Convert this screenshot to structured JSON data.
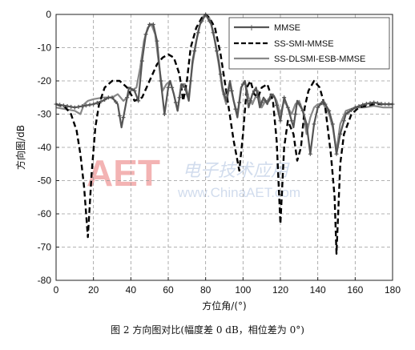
{
  "chart_data": {
    "type": "line",
    "title": "",
    "xlabel": "方位角/(°)",
    "ylabel": "方向图/dB",
    "xlim": [
      0,
      180
    ],
    "ylim": [
      -80,
      0
    ],
    "xticks": [
      0,
      20,
      40,
      60,
      80,
      100,
      120,
      140,
      160,
      180
    ],
    "yticks": [
      0,
      -10,
      -20,
      -30,
      -40,
      -50,
      -60,
      -70,
      -80
    ],
    "grid": true,
    "legend_position": "top-right",
    "series": [
      {
        "name": "MMSE",
        "color": "#555555",
        "style": "solid-plus-markers",
        "points": [
          [
            0,
            -27
          ],
          [
            5,
            -27.5
          ],
          [
            10,
            -28
          ],
          [
            15,
            -27.5
          ],
          [
            20,
            -27
          ],
          [
            25,
            -26
          ],
          [
            28,
            -25
          ],
          [
            30,
            -25
          ],
          [
            33,
            -27
          ],
          [
            35,
            -34
          ],
          [
            37,
            -28
          ],
          [
            39,
            -22
          ],
          [
            42,
            -23
          ],
          [
            44,
            -26
          ],
          [
            46,
            -14
          ],
          [
            48,
            -6
          ],
          [
            50,
            -3
          ],
          [
            52,
            -3
          ],
          [
            54,
            -8
          ],
          [
            56,
            -20
          ],
          [
            58,
            -30
          ],
          [
            60,
            -22
          ],
          [
            61,
            -20
          ],
          [
            63,
            -24
          ],
          [
            65,
            -29
          ],
          [
            67,
            -21
          ],
          [
            69,
            -22
          ],
          [
            71,
            -26
          ],
          [
            73,
            -14
          ],
          [
            75,
            -8
          ],
          [
            77,
            -3
          ],
          [
            80,
            0
          ],
          [
            83,
            -3
          ],
          [
            85,
            -8
          ],
          [
            87,
            -14
          ],
          [
            89,
            -22
          ],
          [
            91,
            -26
          ],
          [
            93,
            -20
          ],
          [
            95,
            -26
          ],
          [
            97,
            -31
          ],
          [
            99,
            -22
          ],
          [
            101,
            -20
          ],
          [
            103,
            -28
          ],
          [
            105,
            -24
          ],
          [
            107,
            -22
          ],
          [
            109,
            -28
          ],
          [
            111,
            -25
          ],
          [
            113,
            -27
          ],
          [
            115,
            -24
          ],
          [
            117,
            -25
          ],
          [
            120,
            -32
          ],
          [
            122,
            -25
          ],
          [
            124,
            -28
          ],
          [
            127,
            -34
          ],
          [
            129,
            -26
          ],
          [
            132,
            -29
          ],
          [
            134,
            -33
          ],
          [
            136,
            -42
          ],
          [
            138,
            -33
          ],
          [
            140,
            -28
          ],
          [
            143,
            -26
          ],
          [
            146,
            -29
          ],
          [
            148,
            -33
          ],
          [
            150,
            -42
          ],
          [
            152,
            -36
          ],
          [
            155,
            -30
          ],
          [
            160,
            -28
          ],
          [
            165,
            -27
          ],
          [
            170,
            -26.5
          ],
          [
            175,
            -27
          ],
          [
            180,
            -27
          ]
        ]
      },
      {
        "name": "SS-SMI-MMSE",
        "color": "#000000",
        "style": "dashed",
        "points": [
          [
            0,
            -27
          ],
          [
            5,
            -28
          ],
          [
            8,
            -30
          ],
          [
            11,
            -35
          ],
          [
            13,
            -42
          ],
          [
            15,
            -52
          ],
          [
            17,
            -67
          ],
          [
            19,
            -48
          ],
          [
            21,
            -34
          ],
          [
            23,
            -27
          ],
          [
            26,
            -22
          ],
          [
            30,
            -20
          ],
          [
            34,
            -20
          ],
          [
            38,
            -22
          ],
          [
            42,
            -26
          ],
          [
            46,
            -25
          ],
          [
            50,
            -20
          ],
          [
            54,
            -15
          ],
          [
            57,
            -13
          ],
          [
            60,
            -12
          ],
          [
            63,
            -13
          ],
          [
            66,
            -18
          ],
          [
            68,
            -26
          ],
          [
            70,
            -20
          ],
          [
            72,
            -10
          ],
          [
            75,
            -4
          ],
          [
            78,
            -1
          ],
          [
            80,
            0
          ],
          [
            82,
            -1
          ],
          [
            85,
            -4
          ],
          [
            88,
            -12
          ],
          [
            91,
            -23
          ],
          [
            95,
            -38
          ],
          [
            98,
            -47
          ],
          [
            100,
            -36
          ],
          [
            102,
            -22
          ],
          [
            104,
            -20
          ],
          [
            106,
            -24
          ],
          [
            108,
            -25
          ],
          [
            110,
            -22
          ],
          [
            113,
            -21
          ],
          [
            116,
            -26
          ],
          [
            118,
            -38
          ],
          [
            120,
            -63
          ],
          [
            122,
            -40
          ],
          [
            124,
            -32
          ],
          [
            127,
            -36
          ],
          [
            129,
            -44
          ],
          [
            131,
            -40
          ],
          [
            133,
            -28
          ],
          [
            135,
            -23
          ],
          [
            138,
            -20
          ],
          [
            141,
            -22
          ],
          [
            144,
            -28
          ],
          [
            147,
            -42
          ],
          [
            149,
            -55
          ],
          [
            150,
            -72
          ],
          [
            152,
            -45
          ],
          [
            154,
            -36
          ],
          [
            158,
            -30
          ],
          [
            162,
            -28
          ],
          [
            170,
            -27
          ],
          [
            180,
            -27
          ]
        ]
      },
      {
        "name": "SS-DLSMI-ESB-MMSE",
        "color": "#888888",
        "style": "solid",
        "points": [
          [
            0,
            -28
          ],
          [
            5,
            -28.5
          ],
          [
            10,
            -29
          ],
          [
            13,
            -30
          ],
          [
            15,
            -27
          ],
          [
            17,
            -26
          ],
          [
            20,
            -25.5
          ],
          [
            25,
            -25
          ],
          [
            30,
            -25
          ],
          [
            33,
            -24
          ],
          [
            36,
            -26
          ],
          [
            38,
            -25
          ],
          [
            40,
            -23
          ],
          [
            43,
            -22
          ],
          [
            45,
            -16
          ],
          [
            47,
            -8
          ],
          [
            49,
            -4
          ],
          [
            51,
            -3
          ],
          [
            53,
            -6
          ],
          [
            55,
            -15
          ],
          [
            57,
            -23
          ],
          [
            59,
            -21
          ],
          [
            61,
            -20
          ],
          [
            63,
            -24
          ],
          [
            65,
            -29
          ],
          [
            67,
            -21
          ],
          [
            69,
            -21
          ],
          [
            71,
            -25
          ],
          [
            73,
            -15
          ],
          [
            76,
            -5
          ],
          [
            78,
            -1
          ],
          [
            80,
            0
          ],
          [
            82,
            -1
          ],
          [
            84,
            -5
          ],
          [
            87,
            -15
          ],
          [
            89,
            -23
          ],
          [
            91,
            -27
          ],
          [
            93,
            -21
          ],
          [
            95,
            -26
          ],
          [
            97,
            -30
          ],
          [
            99,
            -22
          ],
          [
            101,
            -20
          ],
          [
            103,
            -25
          ],
          [
            105,
            -27
          ],
          [
            108,
            -23
          ],
          [
            110,
            -28
          ],
          [
            112,
            -26
          ],
          [
            114,
            -26
          ],
          [
            116,
            -24
          ],
          [
            118,
            -26
          ],
          [
            120,
            -30
          ],
          [
            122,
            -26
          ],
          [
            124,
            -28
          ],
          [
            126,
            -30
          ],
          [
            128,
            -27
          ],
          [
            130,
            -26
          ],
          [
            132,
            -29
          ],
          [
            134,
            -36
          ],
          [
            136,
            -31
          ],
          [
            138,
            -28
          ],
          [
            140,
            -27
          ],
          [
            143,
            -27
          ],
          [
            146,
            -30
          ],
          [
            148,
            -34
          ],
          [
            150,
            -41
          ],
          [
            152,
            -33
          ],
          [
            155,
            -29
          ],
          [
            160,
            -28
          ],
          [
            165,
            -28
          ],
          [
            170,
            -27.5
          ],
          [
            175,
            -28
          ],
          [
            180,
            -28
          ]
        ]
      }
    ]
  },
  "caption": "图 2  方向图对比(幅度差 0 dB，相位差为 0°)",
  "watermark": {
    "logo": "AET",
    "chinese": "电子技术应用",
    "url": "www.ChinaAET.com"
  }
}
